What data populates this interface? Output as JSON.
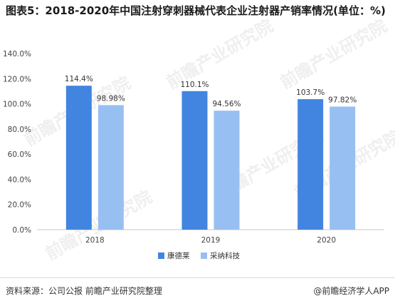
{
  "chart_data": {
    "type": "bar",
    "title": "图表5：2018-2020年中国注射穿刺器械代表企业注射器产销率情况(单位：%)",
    "categories": [
      "2018",
      "2019",
      "2020"
    ],
    "series": [
      {
        "name": "康德莱",
        "values": [
          114.4,
          110.1,
          103.7
        ],
        "labels": [
          "114.4%",
          "110.1%",
          "103.7%"
        ],
        "color": "#4285e0"
      },
      {
        "name": "采纳科技",
        "values": [
          98.98,
          94.56,
          97.82
        ],
        "labels": [
          "98.98%",
          "94.56%",
          "97.82%"
        ],
        "color": "#98bff2"
      }
    ],
    "ylim": [
      0,
      140
    ],
    "yticks": [
      0,
      20,
      40,
      60,
      80,
      100,
      120,
      140
    ],
    "ytick_labels": [
      "0.0%",
      "20.0%",
      "40.0%",
      "60.0%",
      "80.0%",
      "100.0%",
      "120.0%",
      "140.0%"
    ],
    "xlabel": "",
    "ylabel": "",
    "grid": false,
    "legend": "bottom"
  },
  "footer": {
    "source": "资料来源：公司公报 前瞻产业研究院整理",
    "brand": "@前瞻经济学人APP"
  },
  "watermark": "前瞻产业研究院"
}
